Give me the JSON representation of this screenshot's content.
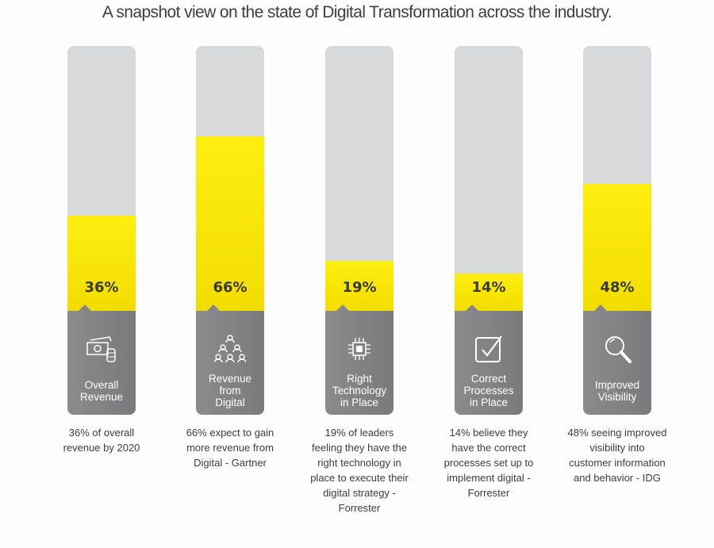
{
  "title": "A snapshot view on the state of Digital Transformation across the industry.",
  "colors": {
    "fill": "#ffee10",
    "track": "#d8d9db",
    "base": "#808082"
  },
  "chart_data": {
    "type": "bar",
    "title": "A snapshot view on the state of Digital Transformation across the industry.",
    "ylim": [
      0,
      100
    ],
    "categories": [
      "Overall Revenue",
      "Revenue from Digital",
      "Right Technology in Place",
      "Correct Processes in Place",
      "Improved Visibility"
    ],
    "values": [
      36,
      66,
      19,
      14,
      48
    ],
    "value_labels": [
      "36%",
      "66%",
      "19%",
      "14%",
      "48%"
    ],
    "icons": [
      "money-coins-icon",
      "people-network-icon",
      "chip-icon",
      "checkbox-icon",
      "magnifier-icon"
    ],
    "descriptions": [
      "36% of overall revenue by 2020",
      "66% expect to gain more revenue from Digital - Gartner",
      "19% of leaders feeling they have the right technology in place to execute their digital strategy - Forrester",
      "14% believe they have the correct processes set up to implement digital - Forrester",
      "48% seeing improved visibility into customer information and behavior - IDG"
    ]
  }
}
